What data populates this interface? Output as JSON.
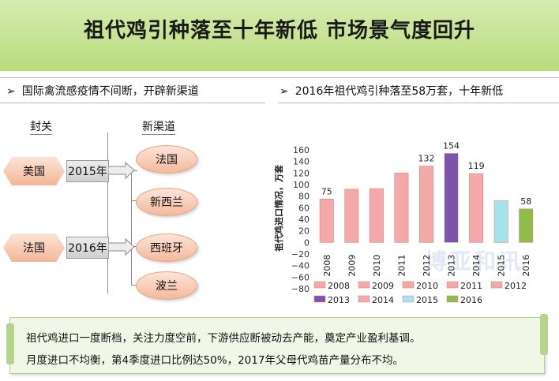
{
  "title": "祖代鸡引种落至十年新低  市场景气度回升",
  "left_panel": {
    "heading": "国际禽流感疫情不间断，开辟新渠道",
    "arrow_glyph": "➢",
    "closed_label": "封关",
    "new_channel_label": "新渠道",
    "closed_countries": [
      {
        "country": "美国",
        "year": "2015年"
      },
      {
        "country": "法国",
        "year": "2016年"
      }
    ],
    "new_countries": [
      "法国",
      "新西兰",
      "西班牙",
      "波兰"
    ]
  },
  "right_panel": {
    "heading": "2016年祖代鸡引种落至58万套，十年新低",
    "arrow_glyph": "➢"
  },
  "chart_data": {
    "type": "bar",
    "title": "",
    "ylabel": "祖代鸡进口情况，万套",
    "xlabel": "",
    "ylim": [
      -80,
      160
    ],
    "yticks": [
      "160",
      "140",
      "120",
      "100",
      "80",
      "60",
      "40",
      "20",
      "0",
      "−20",
      "−40",
      "−60",
      "−80"
    ],
    "categories": [
      "2008",
      "2009",
      "2010",
      "2011",
      "2012",
      "2013",
      "2014",
      "2015",
      "2016"
    ],
    "values": [
      75,
      92,
      93,
      120,
      132,
      154,
      119,
      72,
      58
    ],
    "data_labels": [
      "75",
      "",
      "",
      "",
      "132",
      "154",
      "119",
      "",
      "58"
    ],
    "colors": [
      "#f2a9a8",
      "#f2a9a8",
      "#f2a9a8",
      "#f2a9a8",
      "#f2a9a8",
      "#7f54a6",
      "#f2a9a8",
      "#a4e4ee",
      "#8fbd4a"
    ],
    "legend": [
      "2008",
      "2009",
      "2010",
      "2011",
      "2012",
      "2013",
      "2014",
      "2015",
      "2016"
    ],
    "legend_placement": "bottom",
    "grid": false
  },
  "watermark": "博亚和讯",
  "note": {
    "line1": "祖代鸡进口一度断档，关注力度空前，下游供应断被动去产能，奠定产业盈利基调。",
    "line2": "月度进口不均衡，第4季度进口比例达50%，2017年父母代鸡苗产量分布不均。"
  }
}
